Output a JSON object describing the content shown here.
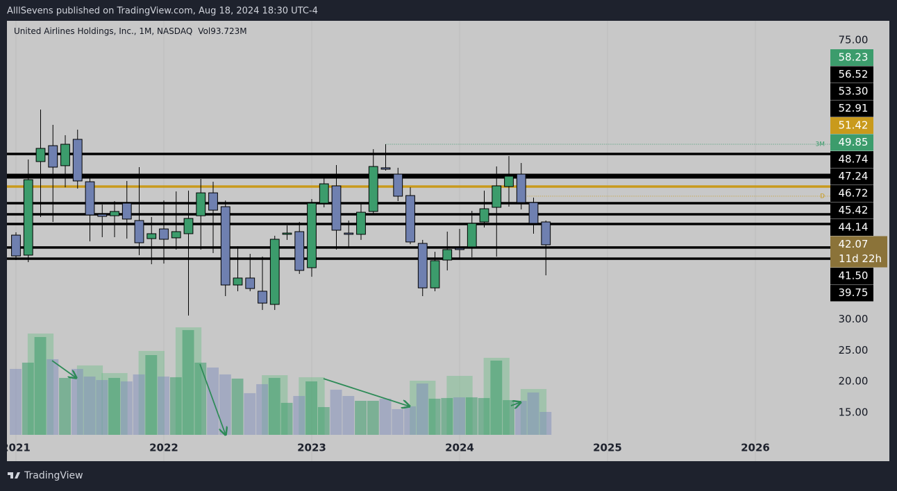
{
  "header": {
    "text": "AlllSevens published on TradingView.com, Aug 18, 2024 18:30 UTC-4"
  },
  "chart_data": {
    "type": "candlestick",
    "title": "United Airlines Holdings, Inc., 1M, NASDAQ",
    "volume_label": "Vol",
    "volume_value": "93.723M",
    "up_color": "#3c9c6c",
    "down_color": "#6f80b0",
    "open": [
      42.82,
      41.27,
      48.51,
      49.74,
      48.19,
      50.23,
      46.95,
      44.43,
      44.32,
      45.29,
      43.95,
      42.55,
      43.3,
      42.61,
      42.93,
      44.32,
      46.09,
      45.02,
      38.96,
      39.5,
      38.48,
      37.46,
      42.88,
      43.09,
      40.3,
      45.29,
      46.63,
      42.98,
      42.88,
      44.65,
      48.03,
      47.54,
      45.88,
      42.18,
      38.74,
      40.89,
      41.8,
      41.91,
      43.84,
      44.97,
      46.58,
      47.54,
      45.34,
      43.84
    ],
    "high": [
      43.04,
      48.67,
      52.53,
      51.35,
      50.55,
      50.98,
      47.33,
      45.18,
      45.45,
      47.01,
      48.08,
      44.22,
      45.5,
      46.2,
      46.26,
      47.17,
      46.95,
      45.5,
      41.96,
      41.37,
      41.16,
      42.77,
      43.57,
      43.84,
      45.61,
      47.22,
      48.24,
      43.95,
      45.29,
      49.47,
      49.85,
      48.03,
      46.52,
      42.45,
      41.53,
      43.09,
      43.3,
      44.7,
      46.26,
      48.13,
      48.94,
      48.4,
      45.72,
      43.95
    ],
    "low": [
      40.89,
      40.73,
      44.22,
      43.84,
      46.52,
      46.42,
      42.34,
      42.66,
      42.66,
      42.55,
      41.27,
      40.57,
      40.62,
      41.7,
      36.6,
      41.7,
      41.43,
      38.1,
      38.48,
      38.48,
      37.03,
      37.03,
      42.45,
      39.82,
      39.6,
      44.97,
      41.7,
      41.86,
      42.45,
      44.48,
      47.81,
      45.45,
      42.12,
      38.1,
      38.48,
      40.09,
      40.94,
      41.11,
      43.41,
      41.16,
      45.02,
      44.81,
      42.93,
      39.71
    ],
    "close": [
      41.21,
      47.11,
      49.53,
      48.08,
      49.85,
      47.01,
      44.38,
      44.27,
      44.65,
      44.06,
      42.23,
      42.93,
      42.5,
      43.09,
      44.11,
      46.09,
      44.75,
      38.96,
      39.5,
      38.69,
      37.56,
      42.5,
      42.98,
      40.09,
      45.29,
      46.79,
      43.2,
      42.88,
      44.59,
      48.13,
      47.92,
      45.83,
      42.29,
      38.74,
      40.84,
      41.7,
      41.7,
      43.73,
      44.86,
      46.63,
      47.38,
      45.34,
      43.73,
      42.07
    ],
    "volume": [
      22.04,
      23.05,
      27.18,
      23.6,
      20.59,
      22.04,
      20.81,
      20.25,
      20.59,
      20.03,
      21.15,
      24.27,
      20.81,
      20.7,
      28.3,
      23.05,
      22.26,
      21.15,
      20.48,
      18.13,
      19.58,
      20.59,
      16.57,
      17.68,
      20.03,
      15.89,
      18.69,
      17.68,
      16.9,
      16.9,
      17.24,
      15.56,
      16.01,
      19.69,
      17.24,
      17.35,
      17.46,
      17.46,
      17.35,
      23.38,
      17.01,
      16.9,
      18.24,
      15.11
    ],
    "volume_highlight": [
      null,
      null,
      27.74,
      null,
      null,
      null,
      22.6,
      null,
      21.37,
      null,
      null,
      24.94,
      null,
      null,
      28.74,
      null,
      null,
      null,
      null,
      null,
      null,
      21.03,
      null,
      null,
      20.7,
      null,
      null,
      null,
      null,
      null,
      null,
      null,
      null,
      20.14,
      null,
      null,
      20.92,
      null,
      null,
      23.83,
      null,
      null,
      18.8,
      null
    ],
    "ylim": [
      27.37,
      59.4
    ],
    "y2lim": [
      11.42,
      78.13
    ],
    "y2ticks": [
      {
        "value": 75,
        "label": "75.00"
      },
      {
        "value": 30,
        "label": "30.00"
      },
      {
        "value": 25,
        "label": "25.00"
      },
      {
        "value": 20,
        "label": "20.00"
      },
      {
        "value": 15,
        "label": "15.00"
      }
    ],
    "xlim": [
      2020.939,
      2026.507
    ],
    "xticks": [
      2021,
      2022,
      2023,
      2024,
      2025,
      2026
    ],
    "hlines": [
      {
        "value": 49.1,
        "color": "#000000",
        "weight": "normal"
      },
      {
        "value": 47.38,
        "color": "#000000",
        "weight": "heavy"
      },
      {
        "value": 46.58,
        "color": "#c99a1c",
        "weight": "normal"
      },
      {
        "value": 45.29,
        "color": "#000000",
        "weight": "normal"
      },
      {
        "value": 44.43,
        "color": "#000000",
        "weight": "normal"
      },
      {
        "value": 43.68,
        "color": "#000000",
        "weight": "normal"
      },
      {
        "value": 41.86,
        "color": "#000000",
        "weight": "normal"
      },
      {
        "value": 41.0,
        "color": "#000000",
        "weight": "normal"
      }
    ],
    "dotted_lines": [
      {
        "value": 49.85,
        "label": "3M",
        "color": "#3c9c6c"
      },
      {
        "value": 45.83,
        "label": "D",
        "color": "#c99a1c"
      }
    ],
    "price_labels": [
      {
        "value": 58.23,
        "color": "#3c9c6c"
      },
      {
        "value": 56.52,
        "color": "#000000"
      },
      {
        "value": 53.3,
        "label": "53.30",
        "color": "#000000"
      },
      {
        "value": 52.91,
        "color": "#000000"
      },
      {
        "value": 51.42,
        "color": "#c99a1c"
      },
      {
        "value": 49.85,
        "color": "#3c9c6c"
      },
      {
        "value": 48.74,
        "color": "#000000"
      },
      {
        "value": 47.24,
        "color": "#000000"
      },
      {
        "value": 46.72,
        "color": "#000000"
      },
      {
        "value": 45.42,
        "color": "#000000"
      },
      {
        "value": 44.14,
        "color": "#000000"
      },
      {
        "value": 42.07,
        "color": "#8b7339"
      },
      {
        "value": 41.5,
        "label": "41.50",
        "color": "#000000"
      },
      {
        "value": 39.75,
        "color": "#000000"
      }
    ],
    "countdown": "11d 22h"
  },
  "footer": {
    "brand": "TradingView"
  }
}
